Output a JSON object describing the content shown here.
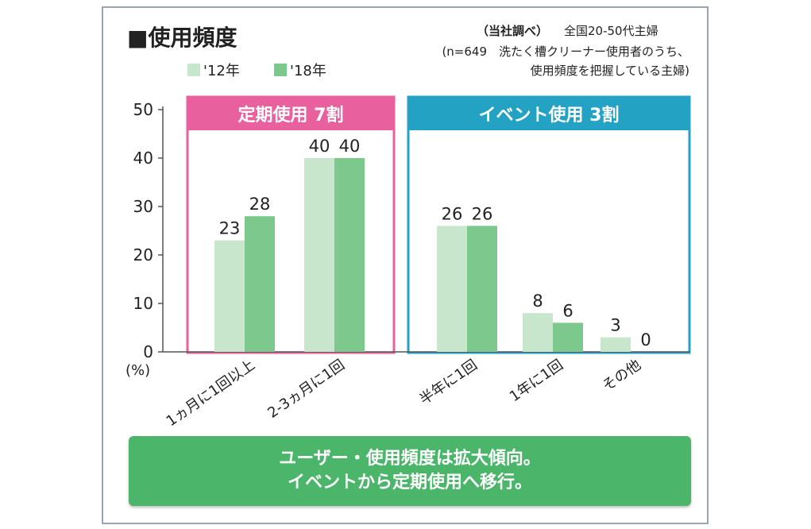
{
  "chart_data": {
    "type": "bar",
    "title": "■使用頻度",
    "source": "（当社調べ）",
    "note_lines": [
      "全国20-50代主婦",
      "(n=649　洗たく槽クリーナー使用者のうち、",
      "使用頻度を把握している主婦)"
    ],
    "unit_label": "(%)",
    "ylim": [
      0,
      50
    ],
    "yticks": [
      0,
      10,
      20,
      30,
      40,
      50
    ],
    "categories": [
      "1ヵ月に1回以上",
      "2-3ヵ月に1回",
      "半年に1回",
      "1年に1回",
      "その他"
    ],
    "series": [
      {
        "name": "'12年",
        "color": "#c8e6cc",
        "values": [
          23,
          40,
          26,
          8,
          3
        ]
      },
      {
        "name": "'18年",
        "color": "#7dc88d",
        "values": [
          28,
          40,
          26,
          6,
          0
        ]
      }
    ],
    "groups": [
      {
        "label": "定期使用 7割",
        "color": "#e8609e",
        "categories": [
          0,
          1
        ]
      },
      {
        "label": "イベント使用 3割",
        "color": "#24a2c4",
        "categories": [
          2,
          3,
          4
        ]
      }
    ]
  },
  "conclusion": {
    "line1": "ユーザー・使用頻度は拡大傾向。",
    "line2": "イベントから定期使用へ移行。"
  }
}
